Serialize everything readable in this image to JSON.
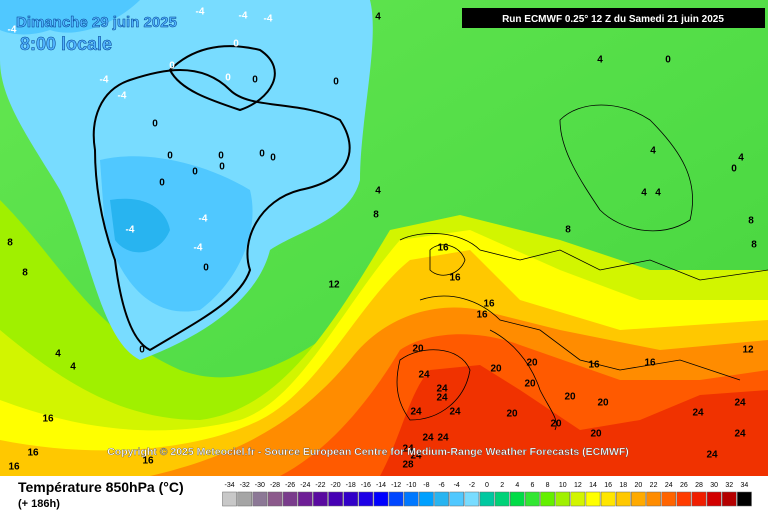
{
  "header": {
    "date": "Dimanche 29 juin 2025",
    "time": "8:00 locale",
    "run": "Run ECMWF 0.25° 12 Z du Samedi 21 juin 2025"
  },
  "copyright": "Copyright © 2025 Meteociel.fr - Source European Centre for Medium-Range Weather Forecasts (ECMWF)",
  "legend": {
    "title": "Température 850hPa (°C)",
    "lead_time": "(+ 186h)"
  },
  "color_scale": {
    "ticks": [
      -34,
      -32,
      -30,
      -28,
      -26,
      -24,
      -22,
      -20,
      -18,
      -16,
      -14,
      -12,
      -10,
      -8,
      -6,
      -4,
      -2,
      0,
      2,
      4,
      6,
      8,
      10,
      12,
      14,
      16,
      18,
      20,
      22,
      24,
      26,
      28,
      30,
      32,
      34
    ],
    "colors": [
      "#c8c8c8",
      "#a5a5a5",
      "#8c7896",
      "#8c5a8c",
      "#7a3c8c",
      "#6e1e96",
      "#5a0aa0",
      "#4600b4",
      "#3200c8",
      "#1e00e6",
      "#0000ff",
      "#0046ff",
      "#0078ff",
      "#00a0ff",
      "#28b4f0",
      "#50c8ff",
      "#78dcff",
      "#00c8a0",
      "#00d278",
      "#00dc46",
      "#32e632",
      "#64f000",
      "#a0f000",
      "#d2f500",
      "#ffff00",
      "#ffe600",
      "#ffc800",
      "#ffaa00",
      "#ff8c00",
      "#ff6400",
      "#ff3c00",
      "#f01e00",
      "#d20000",
      "#b40000",
      "#000000"
    ]
  },
  "contour_labels": [
    -4,
    -4,
    -4,
    -4,
    4,
    -4,
    -4,
    0,
    0,
    0,
    0,
    0,
    0,
    0,
    0,
    0,
    0,
    0,
    0,
    0,
    -4,
    -4,
    -4,
    0,
    0,
    4,
    0,
    4,
    8,
    4,
    4,
    4,
    4,
    0,
    8,
    8,
    8,
    16,
    16,
    16,
    16,
    12,
    8,
    8,
    4,
    4,
    16,
    16,
    16,
    16,
    20,
    20,
    20,
    20,
    20,
    20,
    20,
    20,
    20,
    16,
    16,
    12,
    24,
    24,
    24,
    24,
    24,
    24,
    24,
    24,
    24,
    28,
    24,
    24,
    24,
    24
  ]
}
